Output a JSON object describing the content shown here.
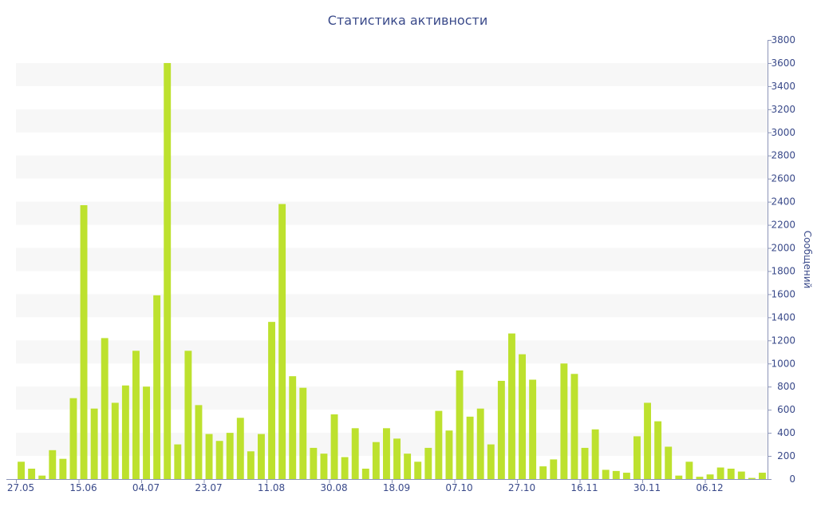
{
  "chart_data": {
    "type": "bar",
    "title": "Статистика активности",
    "ylabel": "Сообщений",
    "xlabel": "",
    "ylim": [
      0,
      3800
    ],
    "y_ticks": [
      0,
      200,
      400,
      600,
      800,
      1000,
      1200,
      1400,
      1600,
      1800,
      2000,
      2200,
      2400,
      2600,
      2800,
      3000,
      3200,
      3400,
      3600,
      3800
    ],
    "y_axis_side": "right",
    "grid": "alternating horizontal bands",
    "bar_color": "#bde12e",
    "band_color": "#f7f7f7",
    "text_color": "#3a4a8a",
    "x_tick_labels": [
      {
        "label": "27.05",
        "index": 0
      },
      {
        "label": "15.06",
        "index": 6
      },
      {
        "label": "04.07",
        "index": 12
      },
      {
        "label": "23.07",
        "index": 18
      },
      {
        "label": "11.08",
        "index": 24
      },
      {
        "label": "30.08",
        "index": 30
      },
      {
        "label": "18.09",
        "index": 36
      },
      {
        "label": "07.10",
        "index": 42
      },
      {
        "label": "27.10",
        "index": 48
      },
      {
        "label": "16.11",
        "index": 54
      },
      {
        "label": "30.11",
        "index": 60
      },
      {
        "label": "06.12",
        "index": 66
      }
    ],
    "values": [
      150,
      90,
      30,
      250,
      175,
      700,
      2370,
      610,
      1220,
      660,
      810,
      1110,
      800,
      1590,
      3600,
      300,
      1110,
      640,
      390,
      330,
      400,
      530,
      240,
      390,
      1360,
      2380,
      890,
      790,
      270,
      220,
      560,
      190,
      440,
      90,
      320,
      440,
      350,
      220,
      150,
      270,
      590,
      420,
      940,
      540,
      610,
      300,
      850,
      1260,
      1080,
      860,
      110,
      170,
      1000,
      910,
      270,
      430,
      80,
      70,
      55,
      370,
      660,
      500,
      280,
      30,
      150,
      20,
      40,
      100,
      90,
      65,
      10,
      55
    ]
  }
}
